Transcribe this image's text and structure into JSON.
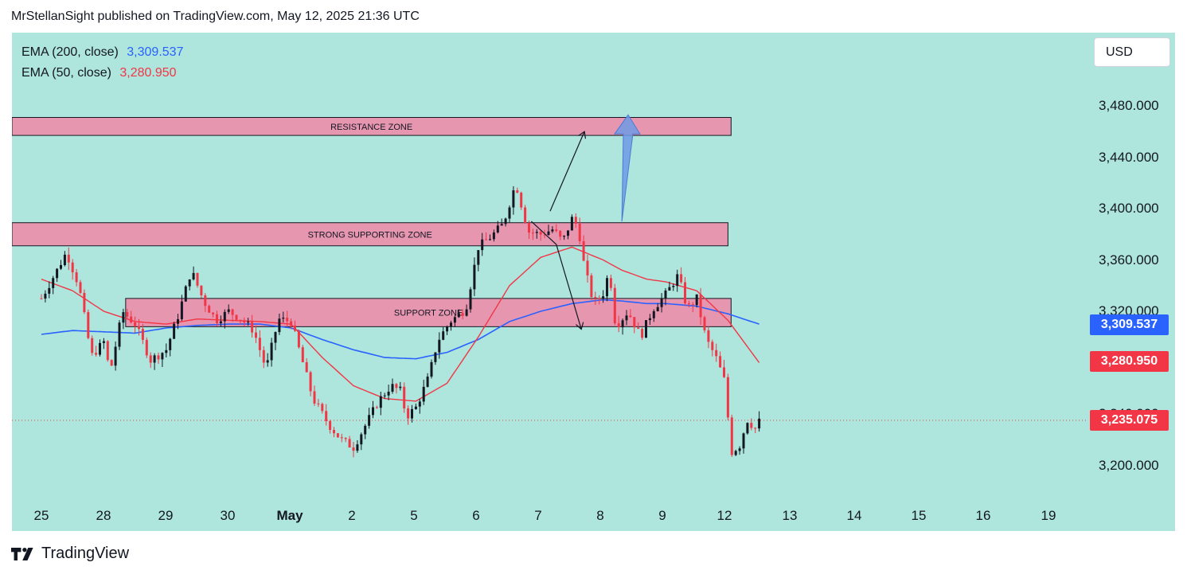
{
  "header": {
    "published_text": "MrStellanSight published on TradingView.com, May 12, 2025 21:36 UTC"
  },
  "legend": {
    "ema200_name": "EMA (200, close)",
    "ema200_value": "3,309.537",
    "ema50_name": "EMA (50, close)",
    "ema50_value": "3,280.950"
  },
  "currency": "USD",
  "footer": {
    "brand": "TradingView"
  },
  "colors": {
    "background": "#aee5dd",
    "ema200": "#2962ff",
    "ema50": "#f23645",
    "zone_fill": "#e796b0",
    "up_candle": "#131722",
    "down_candle": "#f23645",
    "arrow_fill": "#6f9be6"
  },
  "chart_data": {
    "type": "candlestick",
    "y_range": [
      3176,
      3520
    ],
    "price_ticks": [
      "3,480.000",
      "3,440.000",
      "3,400.000",
      "3,360.000",
      "3,320.000",
      "3,240.000",
      "3,200.000"
    ],
    "time_ticks": [
      "25",
      "28",
      "29",
      "30",
      "May",
      "2",
      "5",
      "6",
      "7",
      "8",
      "9",
      "12",
      "13",
      "14",
      "15",
      "16",
      "19"
    ],
    "price_tags": [
      {
        "label": "3,309.537",
        "value": 3309.537,
        "color": "#2962ff"
      },
      {
        "label": "3,280.950",
        "value": 3280.95,
        "color": "#f23645"
      },
      {
        "label": "3,235.075",
        "value": 3235.075,
        "color": "#f23645"
      }
    ],
    "last_price": 3235.075,
    "zones": [
      {
        "label": "RESISTANCE ZONE",
        "high": 3471,
        "low": 3457,
        "start_day": 0,
        "end_day": 11.05
      },
      {
        "label": "STRONG SUPPORTING ZONE",
        "high": 3389,
        "low": 3371,
        "start_day": 0,
        "end_day": 11.0
      },
      {
        "label": "SUPPORT ZONE",
        "high": 3330,
        "low": 3308,
        "start_day": 1.35,
        "end_day": 11.05
      }
    ],
    "close_path": [
      [
        0.0,
        3330
      ],
      [
        0.25,
        3352
      ],
      [
        0.4,
        3366
      ],
      [
        0.6,
        3340
      ],
      [
        0.8,
        3285
      ],
      [
        1.0,
        3296
      ],
      [
        1.1,
        3272
      ],
      [
        1.3,
        3320
      ],
      [
        1.5,
        3310
      ],
      [
        1.75,
        3282
      ],
      [
        2.0,
        3290
      ],
      [
        2.2,
        3318
      ],
      [
        2.4,
        3352
      ],
      [
        2.6,
        3328
      ],
      [
        2.8,
        3313
      ],
      [
        3.0,
        3320
      ],
      [
        3.2,
        3314
      ],
      [
        3.4,
        3305
      ],
      [
        3.6,
        3275
      ],
      [
        3.8,
        3314
      ],
      [
        4.0,
        3312
      ],
      [
        4.2,
        3278
      ],
      [
        4.35,
        3252
      ],
      [
        4.6,
        3232
      ],
      [
        4.8,
        3220
      ],
      [
        5.0,
        3214
      ],
      [
        5.2,
        3232
      ],
      [
        5.4,
        3250
      ],
      [
        5.6,
        3262
      ],
      [
        5.75,
        3258
      ],
      [
        5.85,
        3238
      ],
      [
        6.0,
        3245
      ],
      [
        6.2,
        3268
      ],
      [
        6.35,
        3297
      ],
      [
        6.55,
        3312
      ],
      [
        6.8,
        3322
      ],
      [
        7.0,
        3370
      ],
      [
        7.2,
        3378
      ],
      [
        7.4,
        3388
      ],
      [
        7.6,
        3420
      ],
      [
        7.8,
        3382
      ],
      [
        8.0,
        3380
      ],
      [
        8.2,
        3384
      ],
      [
        8.35,
        3374
      ],
      [
        8.5,
        3392
      ],
      [
        8.6,
        3386
      ],
      [
        8.7,
        3354
      ],
      [
        8.85,
        3326
      ],
      [
        9.0,
        3334
      ],
      [
        9.1,
        3352
      ],
      [
        9.2,
        3308
      ],
      [
        9.4,
        3320
      ],
      [
        9.6,
        3300
      ],
      [
        9.8,
        3322
      ],
      [
        10.0,
        3333
      ],
      [
        10.2,
        3348
      ],
      [
        10.35,
        3322
      ],
      [
        10.5,
        3330
      ],
      [
        10.65,
        3298
      ],
      [
        10.8,
        3285
      ],
      [
        10.95,
        3265
      ],
      [
        11.05,
        3210
      ],
      [
        11.2,
        3216
      ],
      [
        11.3,
        3236
      ],
      [
        11.45,
        3228
      ],
      [
        11.5,
        3234
      ]
    ],
    "ema50": [
      [
        0.0,
        3345
      ],
      [
        0.5,
        3336
      ],
      [
        1.0,
        3320
      ],
      [
        1.5,
        3312
      ],
      [
        2.0,
        3310
      ],
      [
        2.5,
        3314
      ],
      [
        3.0,
        3313
      ],
      [
        3.5,
        3312
      ],
      [
        4.0,
        3310
      ],
      [
        4.5,
        3284
      ],
      [
        5.0,
        3262
      ],
      [
        5.5,
        3252
      ],
      [
        6.0,
        3250
      ],
      [
        6.5,
        3264
      ],
      [
        7.0,
        3300
      ],
      [
        7.5,
        3340
      ],
      [
        8.0,
        3362
      ],
      [
        8.5,
        3370
      ],
      [
        9.0,
        3360
      ],
      [
        9.3,
        3352
      ],
      [
        9.7,
        3345
      ],
      [
        10.0,
        3343
      ],
      [
        10.5,
        3336
      ],
      [
        11.0,
        3313
      ],
      [
        11.5,
        3280
      ]
    ],
    "ema200": [
      [
        0.0,
        3302
      ],
      [
        0.5,
        3305
      ],
      [
        1.0,
        3304
      ],
      [
        1.5,
        3303
      ],
      [
        2.0,
        3307
      ],
      [
        2.5,
        3309
      ],
      [
        3.0,
        3310
      ],
      [
        3.5,
        3310
      ],
      [
        4.0,
        3307
      ],
      [
        4.5,
        3298
      ],
      [
        5.0,
        3290
      ],
      [
        5.5,
        3284
      ],
      [
        6.0,
        3283
      ],
      [
        6.5,
        3288
      ],
      [
        7.0,
        3298
      ],
      [
        7.5,
        3312
      ],
      [
        8.0,
        3320
      ],
      [
        8.5,
        3326
      ],
      [
        9.0,
        3329
      ],
      [
        9.3,
        3328
      ],
      [
        9.7,
        3326
      ],
      [
        10.0,
        3326
      ],
      [
        10.5,
        3324
      ],
      [
        11.0,
        3318
      ],
      [
        11.5,
        3310
      ]
    ],
    "annotations": {
      "path_arrow": [
        [
          7.85,
          3390
        ],
        [
          8.25,
          3372
        ],
        [
          8.65,
          3306
        ]
      ],
      "up_arrow": [
        [
          8.15,
          3398
        ],
        [
          8.7,
          3460
        ]
      ],
      "blue_arrow": {
        "from_day": 9.3,
        "from_value": 3390,
        "to_day": 9.4,
        "to_value": 3473
      }
    }
  }
}
